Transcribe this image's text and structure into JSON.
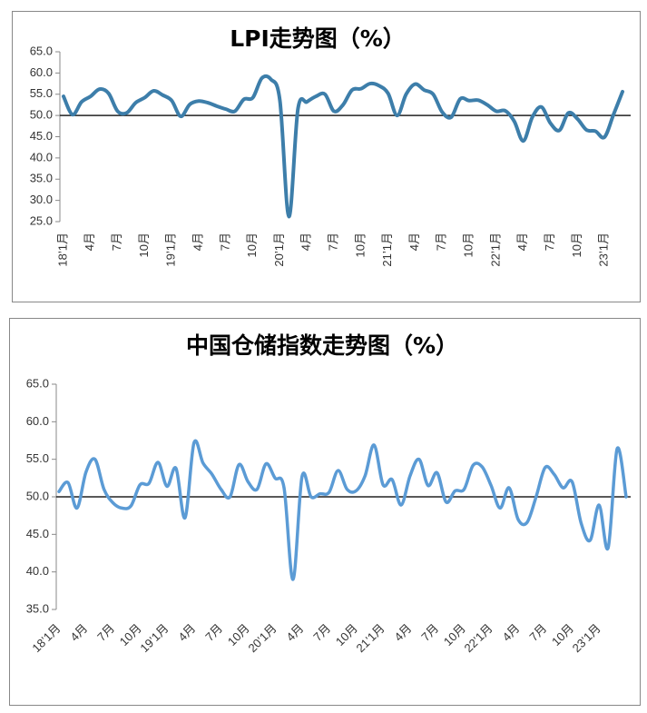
{
  "chart_data": [
    {
      "type": "line",
      "title": "LPI走势图（%）",
      "categories": [
        "18’1月",
        null,
        null,
        "4月",
        null,
        null,
        "7月",
        null,
        null,
        "10月",
        null,
        null,
        "19’1月",
        null,
        null,
        "4月",
        null,
        null,
        "7月",
        null,
        null,
        "10月",
        null,
        null,
        "20’1月",
        null,
        null,
        "4月",
        null,
        null,
        "7月",
        null,
        null,
        "10月",
        null,
        null,
        "21’1月",
        null,
        null,
        "4月",
        null,
        null,
        "7月",
        null,
        null,
        "10月",
        null,
        null,
        "22’1月",
        null,
        null,
        "4月",
        null,
        null,
        "7月",
        null,
        null,
        "10月",
        null,
        null,
        "23’1月",
        null,
        null
      ],
      "series": [
        {
          "name": "LPI",
          "color": "#3d7eaa",
          "values": [
            54.5,
            50.2,
            53.2,
            54.5,
            56.2,
            55.2,
            51.0,
            50.6,
            53.0,
            54.2,
            55.8,
            54.8,
            53.5,
            49.8,
            52.6,
            53.4,
            53.0,
            52.2,
            51.5,
            51.0,
            53.8,
            54.2,
            58.8,
            58.5,
            53.5,
            26.2,
            51.5,
            53.2,
            54.5,
            55.0,
            51.0,
            52.5,
            56.0,
            56.3,
            57.5,
            57.0,
            55.2,
            50.0,
            55.0,
            57.4,
            56.0,
            55.0,
            50.8,
            49.6,
            53.9,
            53.5,
            53.6,
            52.5,
            51.0,
            51.1,
            48.6,
            44.0,
            49.6,
            52.0,
            48.2,
            46.5,
            50.6,
            49.2,
            46.6,
            46.3,
            44.9,
            50.2,
            55.6
          ]
        }
      ],
      "ylim": [
        25,
        65
      ],
      "yticks": [
        {
          "value": 25,
          "label": "25.0"
        },
        {
          "value": 30,
          "label": "30.0"
        },
        {
          "value": 35,
          "label": "35.0"
        },
        {
          "value": 40,
          "label": "40.0"
        },
        {
          "value": 45,
          "label": "45.0"
        },
        {
          "value": 50,
          "label": "50.0"
        },
        {
          "value": 55,
          "label": "55.0"
        },
        {
          "value": 60,
          "label": "60.0"
        },
        {
          "value": 65,
          "label": "65.0"
        }
      ],
      "hline": 50
    },
    {
      "type": "line",
      "title": "中国仓储指数走势图（%）",
      "categories": [
        "18’1月",
        null,
        null,
        "4月",
        null,
        null,
        "7月",
        null,
        null,
        "10月",
        null,
        null,
        "19’1月",
        null,
        null,
        "4月",
        null,
        null,
        "7月",
        null,
        null,
        "10月",
        null,
        null,
        "20’1月",
        null,
        null,
        "4月",
        null,
        null,
        "7月",
        null,
        null,
        "10月",
        null,
        null,
        "21’1月",
        null,
        null,
        "4月",
        null,
        null,
        "7月",
        null,
        null,
        "10月",
        null,
        null,
        "22’1月",
        null,
        null,
        "4月",
        null,
        null,
        "7月",
        null,
        null,
        "10月",
        null,
        null,
        "23’1月",
        null,
        null,
        null
      ],
      "series": [
        {
          "name": "中国仓储指数",
          "color": "#5b9bd5",
          "values": [
            50.7,
            51.9,
            48.5,
            53.3,
            55.0,
            51.0,
            49.2,
            48.5,
            48.8,
            51.6,
            51.8,
            54.6,
            51.4,
            53.8,
            47.2,
            57.2,
            54.5,
            53.0,
            51.0,
            50.0,
            54.3,
            52.0,
            51.0,
            54.4,
            52.5,
            51.2,
            39.0,
            52.7,
            50.0,
            50.4,
            50.6,
            53.5,
            51.0,
            50.8,
            52.8,
            56.9,
            51.6,
            52.3,
            48.9,
            52.8,
            55.0,
            51.5,
            53.2,
            49.3,
            50.8,
            51.0,
            54.2,
            54.0,
            51.5,
            48.5,
            51.2,
            47.0,
            46.6,
            50.0,
            53.9,
            53.0,
            51.2,
            52.0,
            46.5,
            44.2,
            48.9,
            43.2,
            56.4,
            50.0
          ]
        }
      ],
      "ylim": [
        35,
        65
      ],
      "yticks": [
        {
          "value": 35,
          "label": "35.0"
        },
        {
          "value": 40,
          "label": "40.0"
        },
        {
          "value": 45,
          "label": "45.0"
        },
        {
          "value": 50,
          "label": "50.0"
        },
        {
          "value": 55,
          "label": "55.0"
        },
        {
          "value": 60,
          "label": "60.0"
        },
        {
          "value": 65,
          "label": "65.0"
        }
      ],
      "hline": 50
    }
  ]
}
